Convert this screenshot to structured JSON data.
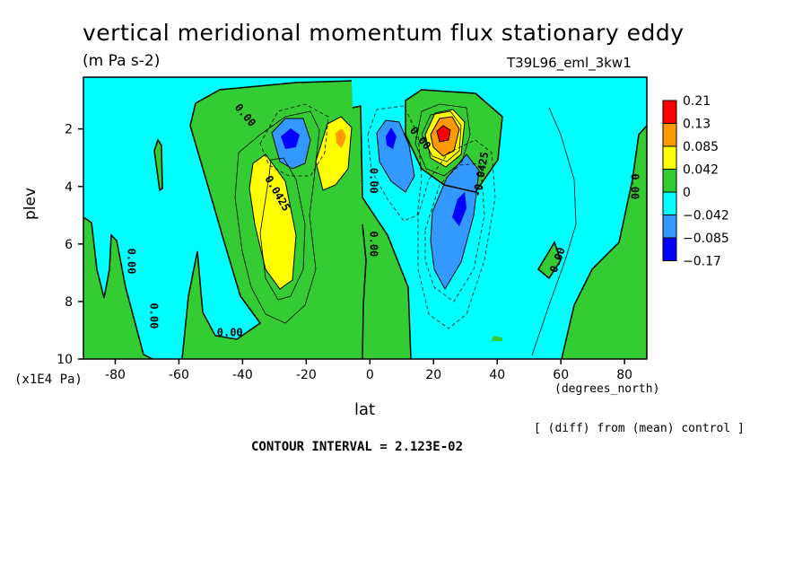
{
  "header": {
    "title": "vertical meridional momentum flux stationary eddy",
    "units": "(m Pa s-2)",
    "run": "T39L96_eml_3kw1"
  },
  "footer": {
    "diff_note": "[ (diff) from (mean) control ]",
    "contour_interval": "CONTOUR INTERVAL = 2.123E-02"
  },
  "chart_data": {
    "type": "heatmap",
    "title": "vertical meridional momentum flux stationary eddy",
    "subtitle": "(m Pa s-2)",
    "xlabel": "lat",
    "x_units": "(degrees_north)",
    "ylabel": "plev",
    "y_units": "(x1E4 Pa)",
    "xlim": [
      -90,
      87
    ],
    "ylim": [
      10,
      0.2
    ],
    "y_inverted": true,
    "x_ticks": [
      -80,
      -60,
      -40,
      -20,
      0,
      20,
      40,
      60,
      80
    ],
    "y_ticks": [
      2,
      4,
      6,
      8,
      10
    ],
    "legend_position": "right",
    "colorbar": {
      "levels": [
        "0.21",
        "0.13",
        "0.085",
        "0.042",
        "0",
        "−0.042",
        "−0.085",
        "−0.17"
      ],
      "colors": [
        "#ff0000",
        "#ff9900",
        "#ffff00",
        "#33cc33",
        "#00ffff",
        "#3399ff",
        "#0000ff",
        "#ffffff"
      ]
    },
    "contour_labels": [
      {
        "text": "0.00",
        "x": -40,
        "y": 1.6,
        "angle": 50
      },
      {
        "text": "0.0425",
        "x": -30,
        "y": 4.3,
        "angle": 60
      },
      {
        "text": "0.00",
        "x": 0,
        "y": 3.8,
        "angle": 90
      },
      {
        "text": "0.00",
        "x": 0,
        "y": 6.0,
        "angle": 90
      },
      {
        "text": "0.00",
        "x": 15,
        "y": 2.4,
        "angle": 50
      },
      {
        "text": "-0.0425",
        "x": 36,
        "y": 3.6,
        "angle": -80
      },
      {
        "text": "0.00",
        "x": -76,
        "y": 6.6,
        "angle": 90
      },
      {
        "text": "0.00",
        "x": -69,
        "y": 8.5,
        "angle": 90
      },
      {
        "text": "0.00",
        "x": -44,
        "y": 9.2,
        "angle": 0
      },
      {
        "text": "0.00",
        "x": 60,
        "y": 6.6,
        "angle": -70
      },
      {
        "text": "0.00",
        "x": 82,
        "y": 4.0,
        "angle": 90
      }
    ],
    "features": [
      {
        "name": "positive maximum",
        "x": 25,
        "y": 2.0,
        "value": 0.21
      },
      {
        "name": "positive lobe",
        "x": -8,
        "y": 2.3,
        "value": 0.085
      },
      {
        "name": "positive lobe",
        "x": -29,
        "y": 5.0,
        "value": 0.085
      },
      {
        "name": "negative lobe",
        "x": -25,
        "y": 2.3,
        "value": -0.085
      },
      {
        "name": "negative lobe",
        "x": 8,
        "y": 2.3,
        "value": -0.085
      },
      {
        "name": "negative minimum",
        "x": 29,
        "y": 4.9,
        "value": -0.17
      }
    ]
  }
}
